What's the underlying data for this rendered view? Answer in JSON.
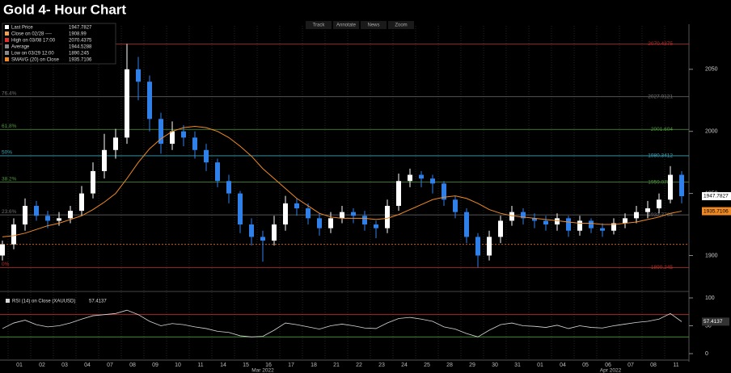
{
  "chart_data": {
    "type": "candlestick",
    "title": "Gold 4- Hour Chart",
    "toolbar": [
      "Track",
      "Annotate",
      "News",
      "Zoom"
    ],
    "legend": [
      {
        "label": "Last Price",
        "value": 1947.7827,
        "color": "#ffffff"
      },
      {
        "label": "Close on 02/28 ----",
        "value": 1908.99,
        "color": "#f0a050"
      },
      {
        "label": "High on 03/08 17:00",
        "value": 2070.4375,
        "color": "#e03030"
      },
      {
        "label": "Average",
        "value": 1944.5288,
        "color": "#888888"
      },
      {
        "label": "Low on 03/29 12:00",
        "value": 1890.245,
        "color": "#888888"
      },
      {
        "label": "SMAVG (20)  on Close",
        "value": 1935.7106,
        "color": "#f08a24"
      }
    ],
    "categories": [
      "01",
      "02",
      "03",
      "04",
      "07",
      "08",
      "09",
      "10",
      "11",
      "14",
      "15",
      "16",
      "17",
      "18",
      "21",
      "22",
      "23",
      "24",
      "25",
      "28",
      "29",
      "30",
      "31",
      "01",
      "04",
      "05",
      "06",
      "07",
      "08",
      "11"
    ],
    "month_labels": [
      "Mar 2022",
      "Apr 2022"
    ],
    "open": [
      1900,
      1909,
      1925,
      1940,
      1932,
      1928,
      1930,
      1936,
      1950,
      1968,
      1985,
      1995,
      2050,
      2040,
      2010,
      1990,
      2000,
      1995,
      1985,
      1975,
      1960,
      1950,
      1925,
      1915,
      1912,
      1925,
      1942,
      1938,
      1930,
      1922,
      1930,
      1935,
      1932,
      1925,
      1922,
      1940,
      1960,
      1965,
      1962,
      1958,
      1945,
      1935,
      1915,
      1900,
      1915,
      1928,
      1935,
      1930,
      1928,
      1925,
      1930,
      1920,
      1928,
      1922,
      1920,
      1926,
      1930,
      1935,
      1938,
      1945,
      1965
    ],
    "high": [
      1912,
      1930,
      1946,
      1944,
      1936,
      1935,
      1940,
      1956,
      1975,
      1998,
      2002,
      2070.4375,
      2060,
      2045,
      2015,
      2008,
      2005,
      2000,
      1990,
      1978,
      1965,
      1952,
      1930,
      1920,
      1932,
      1948,
      1946,
      1942,
      1934,
      1935,
      1940,
      1938,
      1936,
      1928,
      1945,
      1966,
      1970,
      1968,
      1965,
      1960,
      1948,
      1938,
      1918,
      1920,
      1932,
      1940,
      1938,
      1934,
      1932,
      1934,
      1932,
      1932,
      1930,
      1926,
      1930,
      1934,
      1940,
      1944,
      1950,
      1972,
      1968
    ],
    "low": [
      1896,
      1905,
      1920,
      1928,
      1922,
      1924,
      1926,
      1932,
      1946,
      1962,
      1978,
      1990,
      2025,
      2000,
      1982,
      1985,
      1988,
      1978,
      1968,
      1955,
      1942,
      1918,
      1908,
      1895,
      1908,
      1920,
      1932,
      1925,
      1916,
      1918,
      1926,
      1926,
      1920,
      1914,
      1918,
      1936,
      1955,
      1955,
      1950,
      1940,
      1930,
      1910,
      1890.245,
      1896,
      1910,
      1924,
      1925,
      1922,
      1920,
      1920,
      1915,
      1916,
      1918,
      1915,
      1917,
      1922,
      1926,
      1930,
      1934,
      1942,
      1942
    ],
    "close": [
      1909,
      1925,
      1940,
      1932,
      1928,
      1930,
      1936,
      1950,
      1968,
      1985,
      1995,
      2050,
      2040,
      2010,
      1990,
      2000,
      1995,
      1985,
      1975,
      1960,
      1950,
      1925,
      1915,
      1912,
      1925,
      1942,
      1938,
      1930,
      1922,
      1930,
      1935,
      1932,
      1925,
      1922,
      1940,
      1960,
      1965,
      1962,
      1958,
      1945,
      1935,
      1915,
      1900,
      1915,
      1928,
      1935,
      1930,
      1928,
      1925,
      1930,
      1920,
      1928,
      1922,
      1920,
      1926,
      1930,
      1935,
      1938,
      1945,
      1965,
      1947.7827
    ],
    "up_color": "#ffffff",
    "down_color": "#2f80e8",
    "sma_values": [
      1915,
      1916,
      1918,
      1921,
      1924,
      1926,
      1929,
      1932,
      1937,
      1943,
      1950,
      1962,
      1975,
      1986,
      1994,
      2000,
      2003,
      2004,
      2003,
      2000,
      1995,
      1988,
      1980,
      1970,
      1962,
      1954,
      1946,
      1940,
      1934,
      1931,
      1930,
      1930,
      1930,
      1929,
      1930,
      1933,
      1937,
      1941,
      1945,
      1947,
      1948,
      1946,
      1942,
      1937,
      1934,
      1932,
      1931,
      1930,
      1929,
      1928,
      1927,
      1926,
      1926,
      1925,
      1925,
      1926,
      1927,
      1929,
      1931,
      1934,
      1935.7106
    ],
    "sma_color": "#f08a24",
    "levels": [
      {
        "value": 2070.4375,
        "color": "#c0302a"
      },
      {
        "label": "76.4%",
        "value": 2027.9121,
        "color": "#6f6f6f"
      },
      {
        "label": "61.8%",
        "value": 2001.604,
        "color": "#4f9a3a"
      },
      {
        "label": "50%",
        "value": 1980.3412,
        "color": "#3aa6b8"
      },
      {
        "label": "38.2%",
        "value": 1959.0785,
        "color": "#4f9a3a"
      },
      {
        "label": "23.6%",
        "value": 1932.7704,
        "color": "#6f6f6f"
      },
      {
        "label": "0%",
        "value": 1890.245,
        "color": "#c0302a"
      }
    ],
    "close_line": {
      "value": 1908.99,
      "color": "#e0702a"
    },
    "ylim": [
      1873,
      2085
    ],
    "yticks": [
      1900,
      1950,
      2000,
      2050
    ],
    "rsi": {
      "label": "RSI (14) on Close (XAUUSD)",
      "color": "#d8d8d8",
      "values": [
        45,
        55,
        60,
        52,
        48,
        50,
        55,
        62,
        68,
        70,
        72,
        78,
        70,
        58,
        50,
        54,
        52,
        48,
        45,
        40,
        38,
        32,
        30,
        31,
        42,
        55,
        52,
        48,
        44,
        50,
        53,
        50,
        46,
        45,
        55,
        63,
        65,
        62,
        58,
        48,
        44,
        36,
        30,
        42,
        52,
        55,
        50,
        49,
        47,
        51,
        45,
        50,
        47,
        46,
        50,
        53,
        56,
        58,
        62,
        72,
        57.4137
      ],
      "ylim": [
        0,
        100
      ],
      "yticks": [
        0,
        50,
        100
      ],
      "levels": [
        {
          "value": 70,
          "color": "#c0302a"
        },
        {
          "value": 30,
          "color": "#4f9a3a"
        }
      ]
    }
  }
}
